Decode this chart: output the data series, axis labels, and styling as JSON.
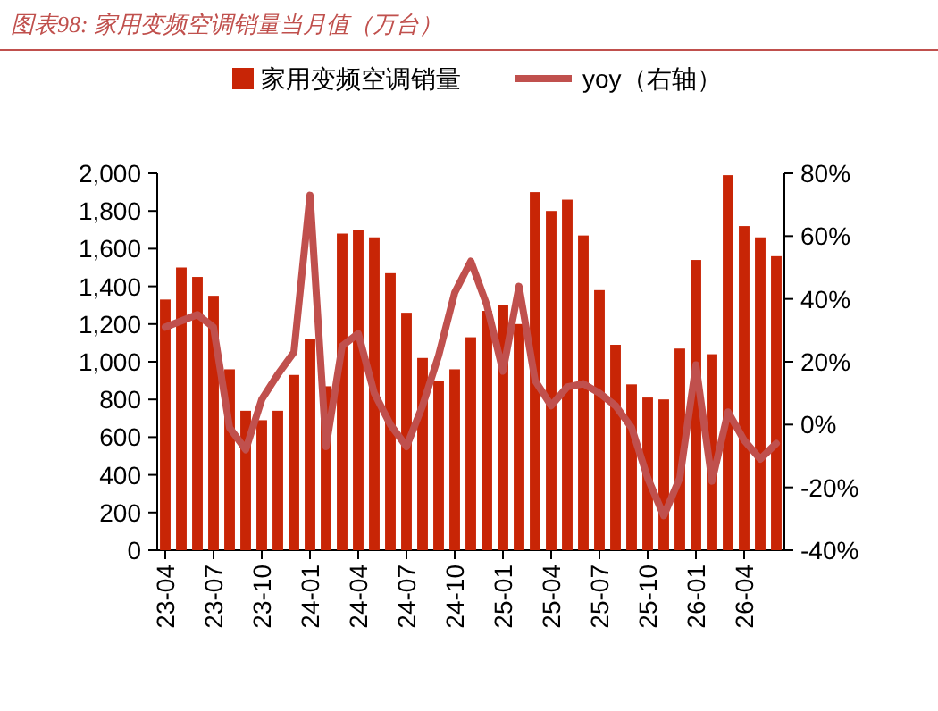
{
  "chart_data": {
    "type": "bar",
    "title": "图表98:  家用变频空调销量当月值（万台）",
    "categories": [
      "23-04",
      null,
      null,
      "23-07",
      null,
      null,
      "23-10",
      null,
      null,
      "24-01",
      null,
      null,
      "24-04",
      null,
      null,
      "24-07",
      null,
      null,
      "24-10",
      null,
      null,
      "25-01",
      null,
      null,
      "25-04",
      null,
      null,
      "25-07",
      null,
      null,
      "25-10",
      null,
      null,
      "26-01",
      null,
      null,
      "26-04",
      null,
      null
    ],
    "series": [
      {
        "name": "家用变频空调销量",
        "color": "#c82506",
        "values": [
          1330,
          1500,
          1450,
          1350,
          960,
          740,
          690,
          740,
          930,
          1120,
          870,
          1680,
          1700,
          1660,
          1470,
          1260,
          1020,
          900,
          960,
          1130,
          1270,
          1300,
          1200,
          1900,
          1800,
          1860,
          1670,
          1380,
          1090,
          880,
          810,
          800,
          1070,
          1540,
          1040,
          1990,
          1720,
          1660,
          1560
        ]
      },
      {
        "name": "yoy（右轴）",
        "type": "line",
        "axis": "y2",
        "color": "#c0504d",
        "values": [
          31,
          33,
          35,
          31,
          -1,
          -8,
          8,
          16,
          23,
          73,
          -7,
          25,
          29,
          10,
          0,
          -7,
          6,
          22,
          42,
          52,
          38,
          17,
          44,
          14,
          6,
          12,
          13,
          10,
          6,
          -1,
          -17,
          -29,
          -17,
          19,
          -18,
          4,
          -5,
          -11,
          -6
        ]
      }
    ],
    "ylim": [
      0,
      2000
    ],
    "yticks": [
      0,
      200,
      400,
      600,
      800,
      {
        "value": 1000,
        "label": "1,000"
      },
      {
        "value": 1200,
        "label": "1,200"
      },
      {
        "value": 1400,
        "label": "1,400"
      },
      {
        "value": 1600,
        "label": "1,600"
      },
      {
        "value": 1800,
        "label": "1,800"
      },
      {
        "value": 2000,
        "label": "2,000"
      }
    ],
    "y2lim": [
      -40,
      80
    ],
    "y2ticks": [
      {
        "value": -40,
        "label": "-40%"
      },
      {
        "value": -20,
        "label": "-20%"
      },
      {
        "value": 0,
        "label": "0%"
      },
      {
        "value": 20,
        "label": "20%"
      },
      {
        "value": 40,
        "label": "40%"
      },
      {
        "value": 60,
        "label": "60%"
      },
      {
        "value": 80,
        "label": "80%"
      }
    ],
    "legend": "top",
    "grid": false
  }
}
